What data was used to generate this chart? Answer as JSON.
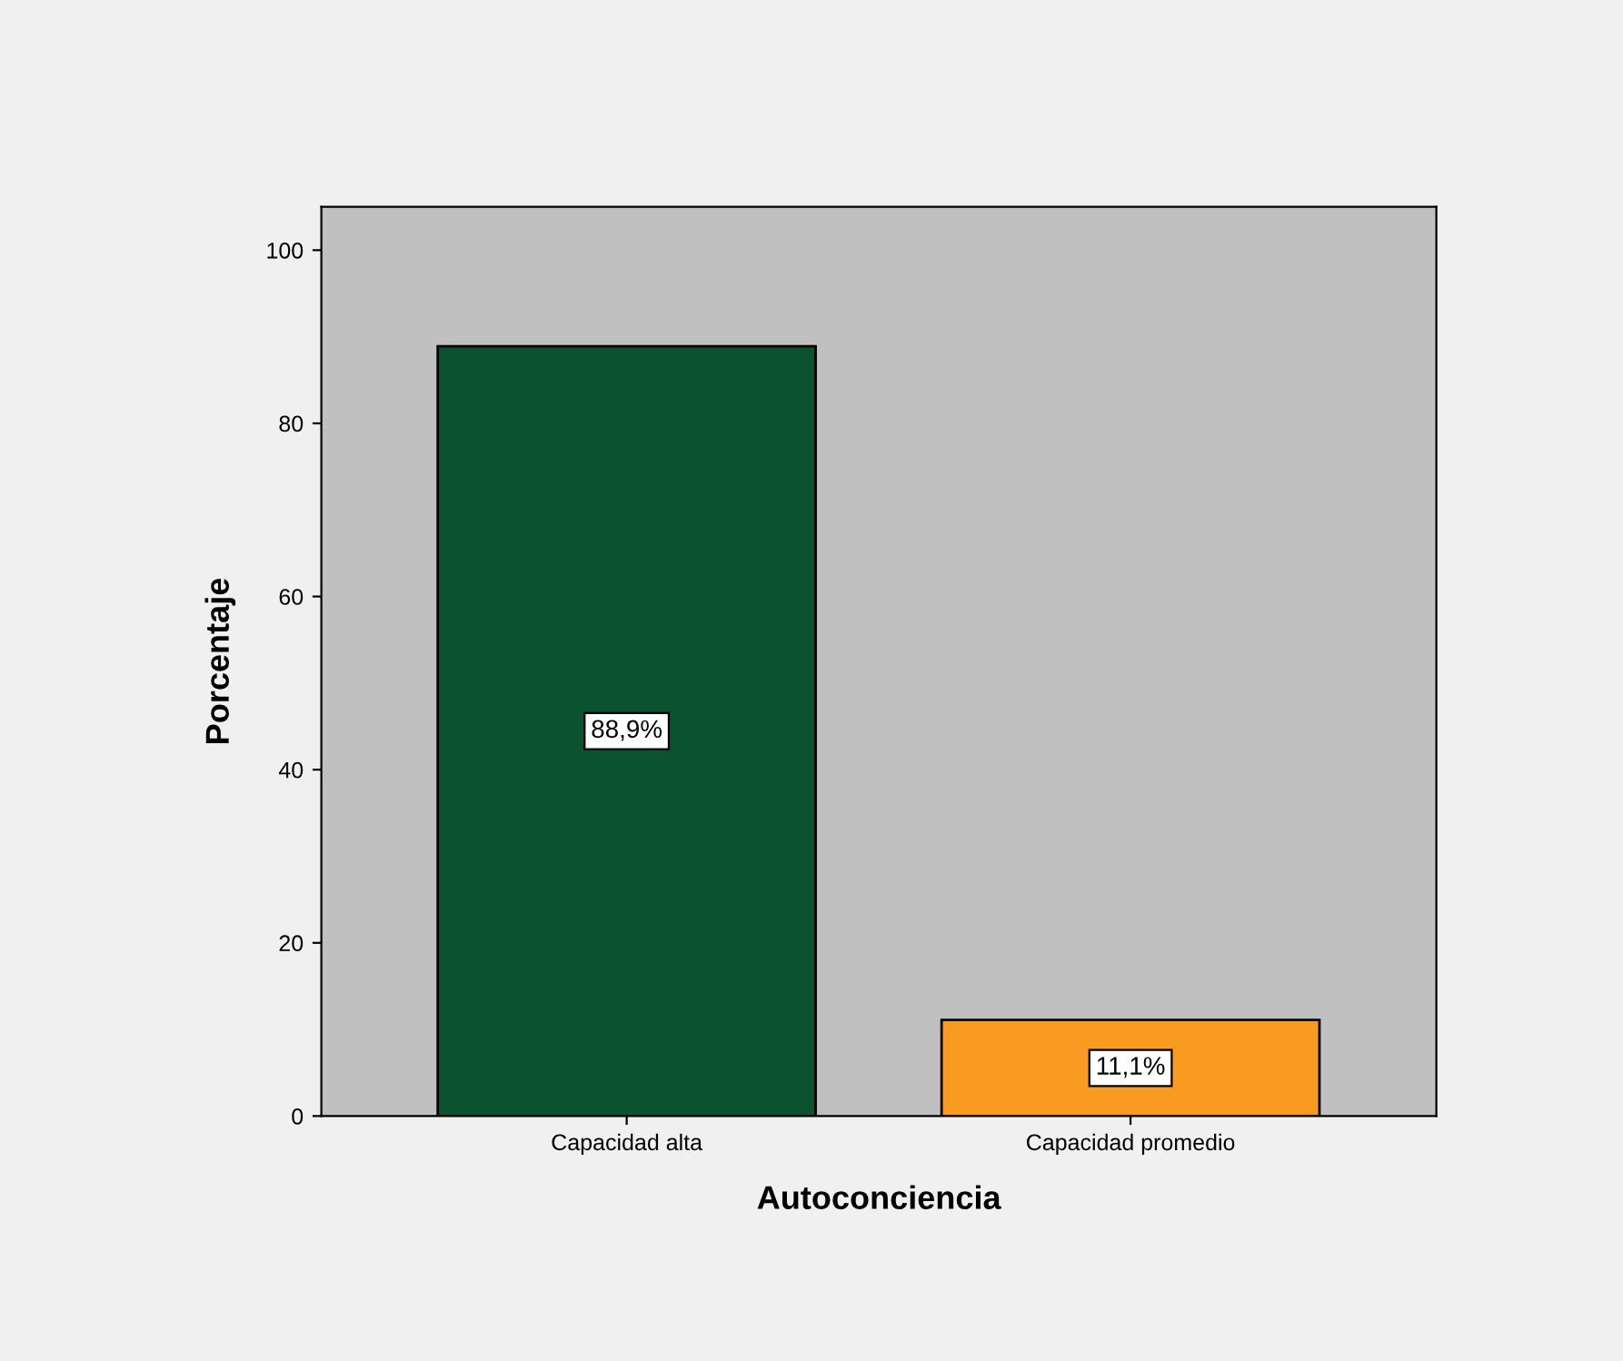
{
  "chart_data": {
    "type": "bar",
    "xlabel": "Autoconciencia",
    "ylabel": "Porcentaje",
    "categories": [
      "Capacidad alta",
      "Capacidad promedio"
    ],
    "values": [
      88.9,
      11.1
    ],
    "colors": [
      "#0b5230",
      "#f89b20"
    ],
    "value_labels": [
      "88,9%",
      "11,1%"
    ],
    "ylim": [
      0,
      105
    ],
    "yticks": [
      0,
      20,
      40,
      60,
      80,
      100
    ],
    "grid": false,
    "legend": false
  }
}
